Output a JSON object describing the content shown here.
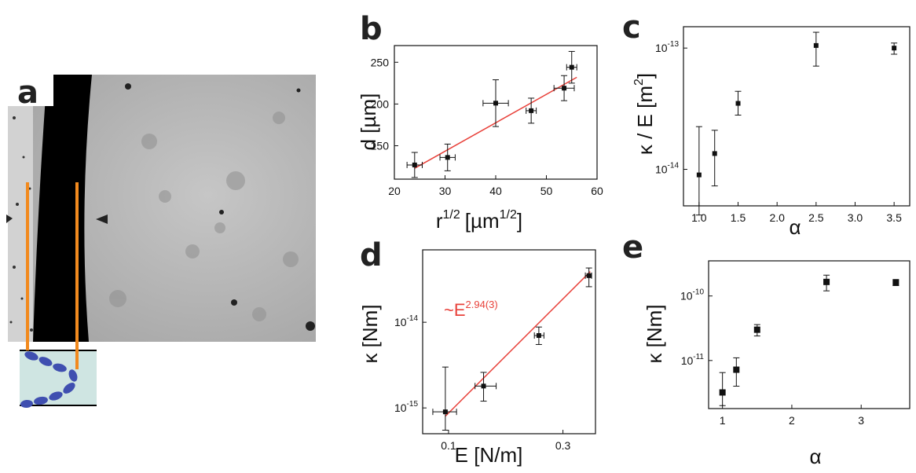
{
  "panel_a": {
    "letter": "a",
    "image": "Microscope image of a dark membrane band with orange marker lines and a blue bead-chain schematic",
    "colors": {
      "band": "#000000",
      "background": "#b8b8b8",
      "markers": "#f28a1e",
      "beads": "#3f4fb0",
      "inset": "#cfe5e2"
    }
  },
  "chart_data": [
    {
      "panel": "b",
      "type": "scatter",
      "xlabel": "r",
      "xlabel_sup": "1/2",
      "xlabel_unit": "[µm",
      "xlabel_unit_sup": "1/2",
      "xlabel_close": "]",
      "ylabel": "d [µm]",
      "xlim": [
        20,
        60
      ],
      "ylim": [
        110,
        270
      ],
      "xticks": [
        "20",
        "30",
        "40",
        "50",
        "60"
      ],
      "yticks": [
        "150",
        "200",
        "250"
      ],
      "x": [
        24,
        30.5,
        40,
        47,
        53.5,
        55
      ],
      "y": [
        127,
        136,
        201,
        192,
        219,
        244
      ],
      "xerr": [
        1.5,
        1.5,
        2.5,
        1,
        2,
        1
      ],
      "yerr": [
        15,
        16,
        28,
        15,
        15,
        19
      ],
      "fit_line": {
        "x": [
          24,
          56
        ],
        "y": [
          123,
          232
        ],
        "color": "#e8413a"
      },
      "xscale": "linear",
      "yscale": "linear"
    },
    {
      "panel": "c",
      "type": "scatter",
      "xlabel": "α",
      "ylabel": "κ / E [m",
      "ylabel_sup": "2",
      "ylabel_close": "]",
      "xlim": [
        0.8,
        3.7
      ],
      "ylim": [
        5e-15,
        1.5e-13
      ],
      "xticks": [
        "1.0",
        "1.5",
        "2.0",
        "2.5",
        "3.0",
        "3.5"
      ],
      "yticks": [
        {
          "mantissa": "10",
          "exp": "-14",
          "value": 1e-14
        },
        {
          "mantissa": "10",
          "exp": "-13",
          "value": 1e-13
        }
      ],
      "x": [
        1.0,
        1.2,
        1.5,
        2.5,
        3.5
      ],
      "y": [
        9e-15,
        1.35e-14,
        3.5e-14,
        1.05e-13,
        1e-13
      ],
      "yerr_low": [
        4.2e-15,
        7.3e-15,
        2.8e-14,
        7.1e-14,
        8.9e-14
      ],
      "yerr_high": [
        2.25e-14,
        2.1e-14,
        4.4e-14,
        1.35e-13,
        1.1e-13
      ],
      "xscale": "linear",
      "yscale": "log"
    },
    {
      "panel": "d",
      "type": "scatter",
      "xlabel": "E [N/m]",
      "ylabel": "κ [Nm]",
      "xlim": [
        0.078,
        0.41
      ],
      "ylim": [
        5e-16,
        7e-14
      ],
      "xticks": [
        {
          "label": "0.1",
          "value": 0.1
        },
        {
          "label": "0.3",
          "value": 0.3
        }
      ],
      "yticks": [
        {
          "mantissa": "10",
          "exp": "-15",
          "value": 1e-15
        },
        {
          "mantissa": "10",
          "exp": "-14",
          "value": 1e-14
        }
      ],
      "x": [
        0.097,
        0.14,
        0.238,
        0.385
      ],
      "y": [
        9e-16,
        1.8e-15,
        7e-15,
        3.5e-14
      ],
      "xerr_low": [
        0.086,
        0.129,
        0.228,
        0.372
      ],
      "xerr_high": [
        0.108,
        0.158,
        0.25,
        0.395
      ],
      "yerr_low": [
        5.5e-16,
        1.2e-15,
        5.5e-15,
        2.6e-14
      ],
      "yerr_high": [
        3e-15,
        2.6e-15,
        8.8e-15,
        4.3e-14
      ],
      "fit_line": {
        "x": [
          0.097,
          0.39
        ],
        "y": [
          8e-16,
          3.9e-14
        ],
        "color": "#e8413a"
      },
      "annotation": {
        "text": "~E",
        "sup": "2.94(3)",
        "color": "#e8413a"
      },
      "xscale": "log",
      "yscale": "log"
    },
    {
      "panel": "e",
      "type": "scatter",
      "xlabel": "α",
      "ylabel": "κ [Nm]",
      "xlim": [
        0.8,
        3.7
      ],
      "ylim": [
        1.8e-12,
        3.5e-10
      ],
      "xticks": [
        "1",
        "2",
        "3"
      ],
      "yticks": [
        {
          "mantissa": "10",
          "exp": "-11",
          "value": 1e-11
        },
        {
          "mantissa": "10",
          "exp": "-10",
          "value": 1e-10
        }
      ],
      "x": [
        1.0,
        1.2,
        1.5,
        2.5,
        3.5
      ],
      "y": [
        3.2e-12,
        7.2e-12,
        3e-11,
        1.65e-10,
        1.6e-10
      ],
      "yerr_low": [
        2e-12,
        4e-12,
        2.4e-11,
        1.2e-10,
        1.45e-10
      ],
      "yerr_high": [
        6.5e-12,
        1.1e-11,
        3.6e-11,
        2.1e-10,
        1.8e-10
      ],
      "xscale": "linear",
      "yscale": "log"
    }
  ]
}
